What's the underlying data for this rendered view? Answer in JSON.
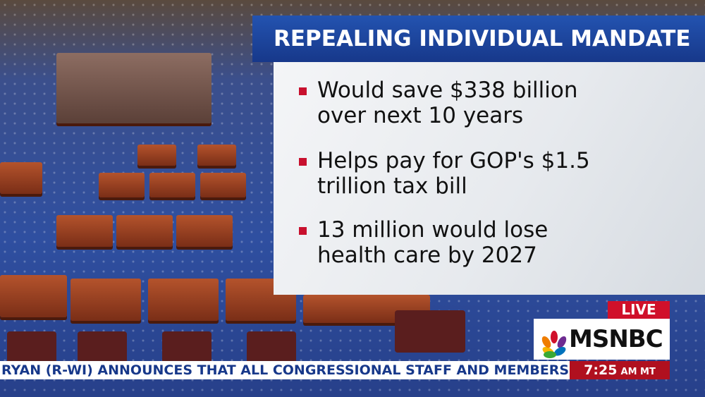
{
  "graphic": {
    "title": "REPEALING INDIVIDUAL MANDATE",
    "bullets": [
      [
        "Would save $338 billion",
        "over next 10 years"
      ],
      [
        "Helps pay for GOP's $1.5",
        "trillion tax bill"
      ],
      [
        "13 million would lose",
        "health care by 2027"
      ]
    ]
  },
  "bug": {
    "live": "LIVE",
    "network": "MSNBC"
  },
  "ticker": {
    "text": "RYAN (R-WI) ANNOUNCES THAT ALL CONGRESSIONAL STAFF AND MEMBERS WI",
    "time": "7:25",
    "suffix": "AM MT"
  }
}
